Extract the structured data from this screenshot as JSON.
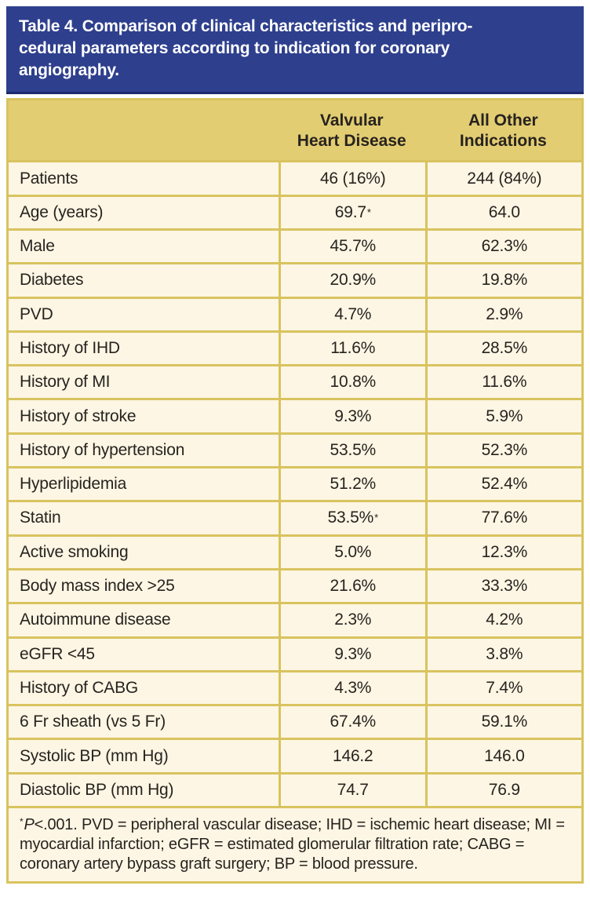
{
  "colors": {
    "header_blue": "#2e3f8d",
    "header_blue_dark": "#1d2a6b",
    "gold": "#e3cd72",
    "border_gold": "#d9c35f",
    "cream": "#fdf6e4",
    "text_dark": "#27231f",
    "title_text": "#ffffff"
  },
  "title_bar": {
    "lines": [
      "Table 4. Comparison of clinical characteristics and peripro-",
      "cedural parameters according to indication for coronary",
      "angiography."
    ]
  },
  "table": {
    "header": {
      "col1": "",
      "col2_lines": [
        "Valvular",
        "Heart Disease"
      ],
      "col3_lines": [
        "All Other",
        "Indications"
      ]
    },
    "rows": [
      {
        "label": "Patients",
        "vhd": "46 (16%)",
        "vhd_sup": "",
        "other": "244 (84%)",
        "other_sup": ""
      },
      {
        "label": "Age (years)",
        "vhd": "69.7",
        "vhd_sup": "*",
        "other": "64.0",
        "other_sup": ""
      },
      {
        "label": "Male",
        "vhd": "45.7%",
        "vhd_sup": "",
        "other": "62.3%",
        "other_sup": ""
      },
      {
        "label": "Diabetes",
        "vhd": "20.9%",
        "vhd_sup": "",
        "other": "19.8%",
        "other_sup": ""
      },
      {
        "label": "PVD",
        "vhd": "4.7%",
        "vhd_sup": "",
        "other": "2.9%",
        "other_sup": ""
      },
      {
        "label": "History of IHD",
        "vhd": "11.6%",
        "vhd_sup": "",
        "other": "28.5%",
        "other_sup": ""
      },
      {
        "label": "History of MI",
        "vhd": "10.8%",
        "vhd_sup": "",
        "other": "11.6%",
        "other_sup": ""
      },
      {
        "label": "History of stroke",
        "vhd": "9.3%",
        "vhd_sup": "",
        "other": "5.9%",
        "other_sup": ""
      },
      {
        "label": "History of hypertension",
        "vhd": "53.5%",
        "vhd_sup": "",
        "other": "52.3%",
        "other_sup": ""
      },
      {
        "label": "Hyperlipidemia",
        "vhd": "51.2%",
        "vhd_sup": "",
        "other": "52.4%",
        "other_sup": ""
      },
      {
        "label": "Statin",
        "vhd": "53.5%",
        "vhd_sup": "*",
        "other": "77.6%",
        "other_sup": ""
      },
      {
        "label": "Active smoking",
        "vhd": "5.0%",
        "vhd_sup": "",
        "other": "12.3%",
        "other_sup": ""
      },
      {
        "label": "Body mass index >25",
        "vhd": "21.6%",
        "vhd_sup": "",
        "other": "33.3%",
        "other_sup": ""
      },
      {
        "label": "Autoimmune disease",
        "vhd": "2.3%",
        "vhd_sup": "",
        "other": "4.2%",
        "other_sup": ""
      },
      {
        "label": "eGFR <45",
        "vhd": "9.3%",
        "vhd_sup": "",
        "other": "3.8%",
        "other_sup": ""
      },
      {
        "label": "History of CABG",
        "vhd": "4.3%",
        "vhd_sup": "",
        "other": "7.4%",
        "other_sup": ""
      },
      {
        "label": "6 Fr sheath (vs 5 Fr)",
        "vhd": "67.4%",
        "vhd_sup": "",
        "other": "59.1%",
        "other_sup": ""
      },
      {
        "label": "Systolic BP (mm Hg)",
        "vhd": "146.2",
        "vhd_sup": "",
        "other": "146.0",
        "other_sup": ""
      },
      {
        "label": "Diastolic BP (mm Hg)",
        "vhd": "74.7",
        "vhd_sup": "",
        "other": "76.9",
        "other_sup": ""
      }
    ],
    "footnote": {
      "marker": "*",
      "italic": "P",
      "text": "<.001. PVD = peripheral vascular disease; IHD = ischemic heart disease; MI = myocardial infarction; eGFR = estimated glomerular filtration rate; CABG = coronary artery bypass graft surgery; BP = blood pressure."
    }
  }
}
